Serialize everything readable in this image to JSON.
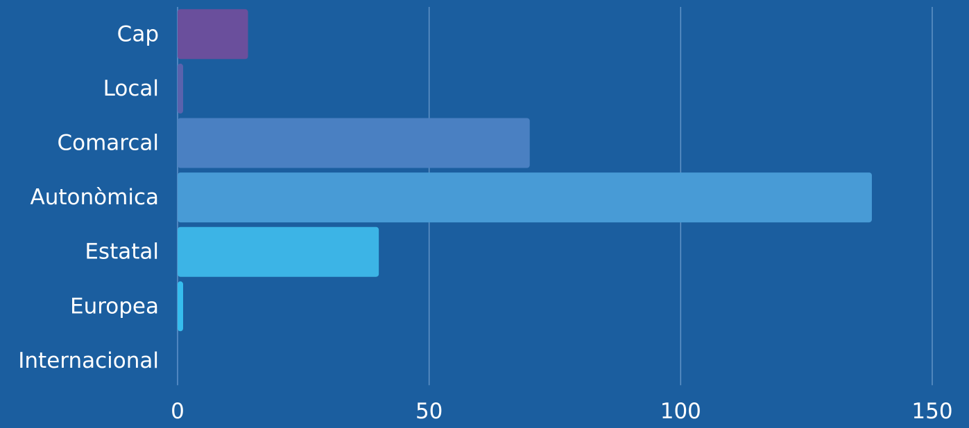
{
  "chart_data": {
    "type": "bar",
    "orientation": "horizontal",
    "title": "",
    "xlabel": "",
    "ylabel": "",
    "categories": [
      "Cap",
      "Local",
      "Comarcal",
      "Autonòmica",
      "Estatal",
      "Europea",
      "Internacional"
    ],
    "values": [
      14,
      1,
      70,
      138,
      40,
      1,
      0
    ],
    "colors": [
      "#6a4f9c",
      "#5a62ad",
      "#4a80c2",
      "#489bd6",
      "#3cb4e6",
      "#36bdee",
      "#3aa9df"
    ],
    "xlim": [
      0,
      150
    ],
    "xticks": [
      "0",
      "50",
      "100",
      "150"
    ],
    "grid": true,
    "legend": "none"
  }
}
